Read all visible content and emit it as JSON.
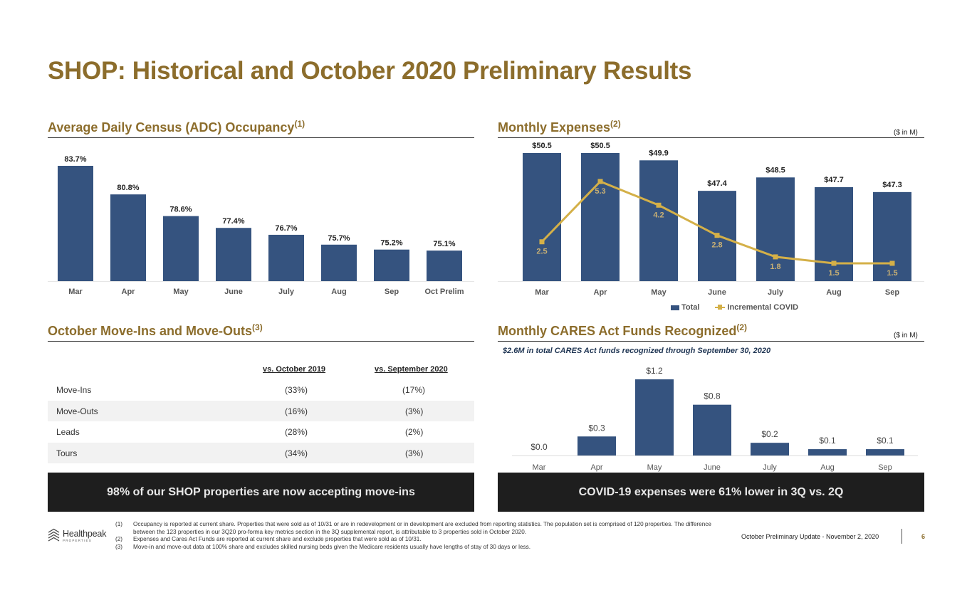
{
  "page": {
    "title": "SHOP: Historical and October 2020 Preliminary Results",
    "footer_text": "October Preliminary Update - November 2, 2020",
    "page_number": "6",
    "logo": {
      "name": "Healthpeak",
      "sub": "PROPERTIES"
    }
  },
  "adc": {
    "title": "Average Daily Census (ADC) Occupancy",
    "title_sup": "(1)"
  },
  "expenses": {
    "title": "Monthly Expenses",
    "title_sup": "(2)",
    "unit": "($ in M)"
  },
  "moves": {
    "title": "October Move-Ins and Move-Outs",
    "title_sup": "(3)",
    "headers": [
      "vs. October 2019",
      "vs. September 2020"
    ],
    "rows": [
      {
        "label": "Move-Ins",
        "v2019": "(33%)",
        "vsep": "(17%)"
      },
      {
        "label": "Move-Outs",
        "v2019": "(16%)",
        "vsep": "(3%)"
      },
      {
        "label": "Leads",
        "v2019": "(28%)",
        "vsep": "(2%)"
      },
      {
        "label": "Tours",
        "v2019": "(34%)",
        "vsep": "(3%)"
      }
    ]
  },
  "cares": {
    "title": "Monthly CARES Act Funds Recognized",
    "title_sup": "(2)",
    "unit": "($ in M)",
    "note": "$2.6M in total CARES Act funds recognized through September 30, 2020"
  },
  "banners": {
    "left": "98% of our SHOP properties are now accepting move-ins",
    "right": "COVID-19 expenses were 61% lower in 3Q vs. 2Q"
  },
  "footnotes": [
    {
      "num": "(1)",
      "text": "Occupancy is reported at current share. Properties that were sold as of 10/31 or are in redevelopment or in development are excluded from reporting statistics. The population set is comprised of 120 properties. The difference between the 123 properties in our 3Q20 pro-forma key metrics section in the 3Q supplemental report, is attributable to 3 properties sold in October 2020."
    },
    {
      "num": "(2)",
      "text": "Expenses and Cares Act Funds are reported at current share and exclude properties that were sold as of 10/31."
    },
    {
      "num": "(3)",
      "text": "Move-in and move-out data at 100% share and excludes skilled nursing beds given the Medicare residents usually have lengths of stay of 30 days or less."
    }
  ],
  "colors": {
    "bar": "#35537f",
    "line": "#d4b048",
    "accent": "#8c6d2c"
  },
  "chart_data": [
    {
      "type": "bar",
      "categories": [
        "Mar",
        "Apr",
        "May",
        "June",
        "July",
        "Aug",
        "Sep",
        "Oct Prelim"
      ],
      "values": [
        83.7,
        80.8,
        78.6,
        77.4,
        76.7,
        75.7,
        75.2,
        75.1
      ],
      "value_labels": [
        "83.7%",
        "80.8%",
        "78.6%",
        "77.4%",
        "76.7%",
        "75.7%",
        "75.2%",
        "75.1%"
      ],
      "title": "Average Daily Census (ADC) Occupancy"
    },
    {
      "type": "bar",
      "categories": [
        "Mar",
        "Apr",
        "May",
        "June",
        "July",
        "Aug",
        "Sep"
      ],
      "series": [
        {
          "name": "Total",
          "type": "bar",
          "values": [
            50.5,
            50.5,
            49.9,
            47.4,
            48.5,
            47.7,
            47.3
          ],
          "labels": [
            "$50.5",
            "$50.5",
            "$49.9",
            "$47.4",
            "$48.5",
            "$47.7",
            "$47.3"
          ]
        },
        {
          "name": "Incremental COVID",
          "type": "line",
          "values": [
            2.5,
            5.3,
            4.2,
            2.8,
            1.8,
            1.5,
            1.5
          ],
          "labels": [
            "2.5",
            "5.3",
            "4.2",
            "2.8",
            "1.8",
            "1.5",
            "1.5"
          ]
        }
      ],
      "title": "Monthly Expenses",
      "legend": "bottom"
    },
    {
      "type": "bar",
      "categories": [
        "Mar",
        "Apr",
        "May",
        "June",
        "July",
        "Aug",
        "Sep"
      ],
      "values": [
        0.0,
        0.3,
        1.2,
        0.8,
        0.2,
        0.1,
        0.1
      ],
      "value_labels": [
        "$0.0",
        "$0.3",
        "$1.2",
        "$0.8",
        "$0.2",
        "$0.1",
        "$0.1"
      ],
      "title": "Monthly CARES Act Funds Recognized"
    }
  ]
}
